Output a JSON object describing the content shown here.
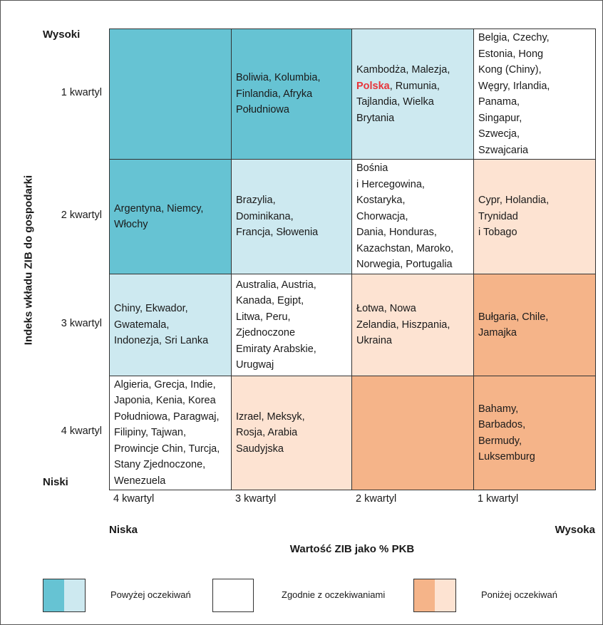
{
  "y_axis": {
    "title": "Indeks wkładu ZIB do gospodarki",
    "top": "Wysoki",
    "bottom": "Niski"
  },
  "x_axis": {
    "title": "Wartość ZIB jako % PKB",
    "left": "Niska",
    "right": "Wysoka",
    "columns": [
      "4 kwartyl",
      "3 kwartyl",
      "2 kwartyl",
      "1 kwartyl"
    ]
  },
  "highlight_color": "#e8343a",
  "rows": [
    {
      "label": "1 kwartyl",
      "cells": [
        {
          "fill": "#66c3d3",
          "lines": []
        },
        {
          "fill": "#66c3d3",
          "lines": [
            "Boliwia, Kolumbia,",
            "Finlandia, Afryka",
            "Południowa"
          ]
        },
        {
          "fill": "#cde9f0",
          "lines": [
            "Kambodża, Malezja,",
            {
              "highlight": "Polska",
              "rest": ", Rumunia,"
            },
            "Tajlandia, Wielka",
            "Brytania"
          ]
        },
        {
          "fill": "#ffffff",
          "lines": [
            "Belgia, Czechy,",
            "Estonia, Hong",
            "Kong (Chiny),",
            "Węgry, Irlandia,",
            "Panama,",
            "Singapur,",
            "Szwecja,",
            "Szwajcaria"
          ]
        }
      ]
    },
    {
      "label": "2 kwartyl",
      "cells": [
        {
          "fill": "#66c3d3",
          "lines": [
            "Argentyna, Niemcy,",
            "Włochy"
          ]
        },
        {
          "fill": "#cde9f0",
          "lines": [
            "Brazylia,",
            "Dominikana,",
            "Francja, Słowenia"
          ]
        },
        {
          "fill": "#ffffff",
          "lines": [
            "Bośnia",
            "i Hercegowina,",
            "Kostaryka,",
            "Chorwacja,",
            "Dania, Honduras,",
            "Kazachstan, Maroko,",
            "Norwegia, Portugalia"
          ]
        },
        {
          "fill": "#fde3d2",
          "lines": [
            "Cypr, Holandia,",
            "Trynidad",
            "i Tobago"
          ]
        }
      ]
    },
    {
      "label": "3 kwartyl",
      "cells": [
        {
          "fill": "#cde9f0",
          "lines": [
            "Chiny, Ekwador,",
            "Gwatemala,",
            "Indonezja, Sri Lanka"
          ]
        },
        {
          "fill": "#ffffff",
          "lines": [
            "Australia, Austria,",
            "Kanada, Egipt,",
            "Litwa, Peru,",
            "Zjednoczone",
            "Emiraty Arabskie,",
            "Urugwaj"
          ]
        },
        {
          "fill": "#fde3d2",
          "lines": [
            "Łotwa, Nowa",
            "Zelandia, Hiszpania,",
            "Ukraina"
          ]
        },
        {
          "fill": "#f5b489",
          "lines": [
            "Bułgaria, Chile,",
            "Jamajka"
          ]
        }
      ]
    },
    {
      "label": "4 kwartyl",
      "cells": [
        {
          "fill": "#ffffff",
          "lines": [
            "Algieria, Grecja, Indie,",
            "Japonia, Kenia, Korea",
            "Południowa, Paragwaj,",
            "Filipiny, Tajwan,",
            "Prowincje Chin, Turcja,",
            "Stany Zjednoczone,",
            "Wenezuela"
          ]
        },
        {
          "fill": "#fde3d2",
          "lines": [
            "Izrael, Meksyk,",
            "Rosja, Arabia",
            "Saudyjska"
          ]
        },
        {
          "fill": "#f5b489",
          "lines": []
        },
        {
          "fill": "#f5b489",
          "lines": [
            "Bahamy,",
            "Barbados,",
            "Bermudy,",
            "Luksemburg"
          ]
        }
      ]
    }
  ],
  "legend": [
    {
      "label": "Powyżej oczekiwań",
      "colors": [
        "#66c3d3",
        "#cde9f0"
      ]
    },
    {
      "label": "Zgodnie z oczekiwaniami",
      "colors": [
        "#ffffff"
      ]
    },
    {
      "label": "Poniżej oczekiwań",
      "colors": [
        "#f5b489",
        "#fde3d2"
      ]
    }
  ]
}
